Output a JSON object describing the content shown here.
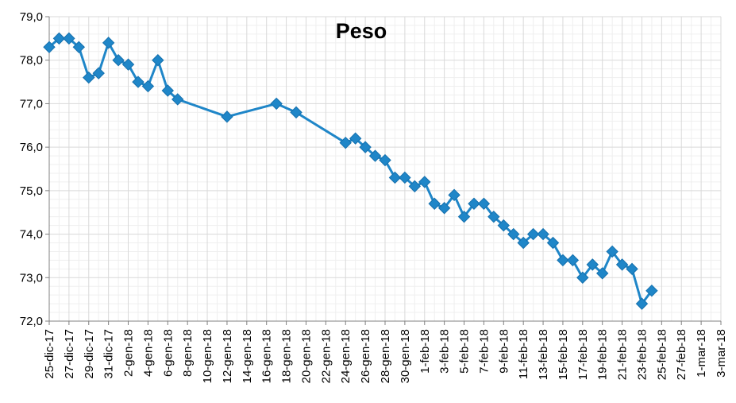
{
  "chart_data": {
    "type": "line",
    "title": "Peso",
    "xlabel": "",
    "ylabel": "",
    "ylim": [
      72.0,
      79.0
    ],
    "y_ticks": [
      "72,0",
      "73,0",
      "74,0",
      "75,0",
      "76,0",
      "77,0",
      "78,0",
      "79,0"
    ],
    "x_range": [
      "2017-12-25",
      "2018-03-03"
    ],
    "x_ticks": [
      "25-dic-17",
      "27-dic-17",
      "29-dic-17",
      "31-dic-17",
      "2-gen-18",
      "4-gen-18",
      "6-gen-18",
      "8-gen-18",
      "10-gen-18",
      "12-gen-18",
      "14-gen-18",
      "16-gen-18",
      "18-gen-18",
      "20-gen-18",
      "22-gen-18",
      "24-gen-18",
      "26-gen-18",
      "28-gen-18",
      "30-gen-18",
      "1-feb-18",
      "3-feb-18",
      "5-feb-18",
      "7-feb-18",
      "9-feb-18",
      "11-feb-18",
      "13-feb-18",
      "15-feb-18",
      "17-feb-18",
      "19-feb-18",
      "21-feb-18",
      "23-feb-18",
      "25-feb-18",
      "27-feb-18",
      "1-mar-18",
      "3-mar-18"
    ],
    "grid": true,
    "series_color": "#1f86c8",
    "series": [
      {
        "points": [
          [
            "2017-12-25",
            78.3
          ],
          [
            "2017-12-26",
            78.5
          ],
          [
            "2017-12-27",
            78.5
          ],
          [
            "2017-12-28",
            78.3
          ],
          [
            "2017-12-29",
            77.6
          ],
          [
            "2017-12-30",
            77.7
          ],
          [
            "2017-12-31",
            78.4
          ],
          [
            "2018-01-01",
            78.0
          ],
          [
            "2018-01-02",
            77.9
          ],
          [
            "2018-01-03",
            77.5
          ],
          [
            "2018-01-04",
            77.4
          ],
          [
            "2018-01-05",
            78.0
          ],
          [
            "2018-01-06",
            77.3
          ],
          [
            "2018-01-07",
            77.1
          ],
          [
            "2018-01-12",
            76.7
          ],
          [
            "2018-01-17",
            77.0
          ],
          [
            "2018-01-19",
            76.8
          ],
          [
            "2018-01-24",
            76.1
          ],
          [
            "2018-01-25",
            76.2
          ],
          [
            "2018-01-26",
            76.0
          ],
          [
            "2018-01-27",
            75.8
          ],
          [
            "2018-01-28",
            75.7
          ],
          [
            "2018-01-29",
            75.3
          ],
          [
            "2018-01-30",
            75.3
          ],
          [
            "2018-01-31",
            75.1
          ],
          [
            "2018-02-01",
            75.2
          ],
          [
            "2018-02-02",
            74.7
          ],
          [
            "2018-02-03",
            74.6
          ],
          [
            "2018-02-04",
            74.9
          ],
          [
            "2018-02-05",
            74.4
          ],
          [
            "2018-02-06",
            74.7
          ],
          [
            "2018-02-07",
            74.7
          ],
          [
            "2018-02-08",
            74.4
          ],
          [
            "2018-02-09",
            74.2
          ],
          [
            "2018-02-10",
            74.0
          ],
          [
            "2018-02-11",
            73.8
          ],
          [
            "2018-02-12",
            74.0
          ],
          [
            "2018-02-13",
            74.0
          ],
          [
            "2018-02-14",
            73.8
          ],
          [
            "2018-02-15",
            73.4
          ],
          [
            "2018-02-16",
            73.4
          ],
          [
            "2018-02-17",
            73.0
          ],
          [
            "2018-02-18",
            73.3
          ],
          [
            "2018-02-19",
            73.1
          ],
          [
            "2018-02-20",
            73.6
          ],
          [
            "2018-02-21",
            73.3
          ],
          [
            "2018-02-22",
            73.2
          ],
          [
            "2018-02-23",
            72.4
          ],
          [
            "2018-02-24",
            72.7
          ]
        ]
      }
    ]
  }
}
